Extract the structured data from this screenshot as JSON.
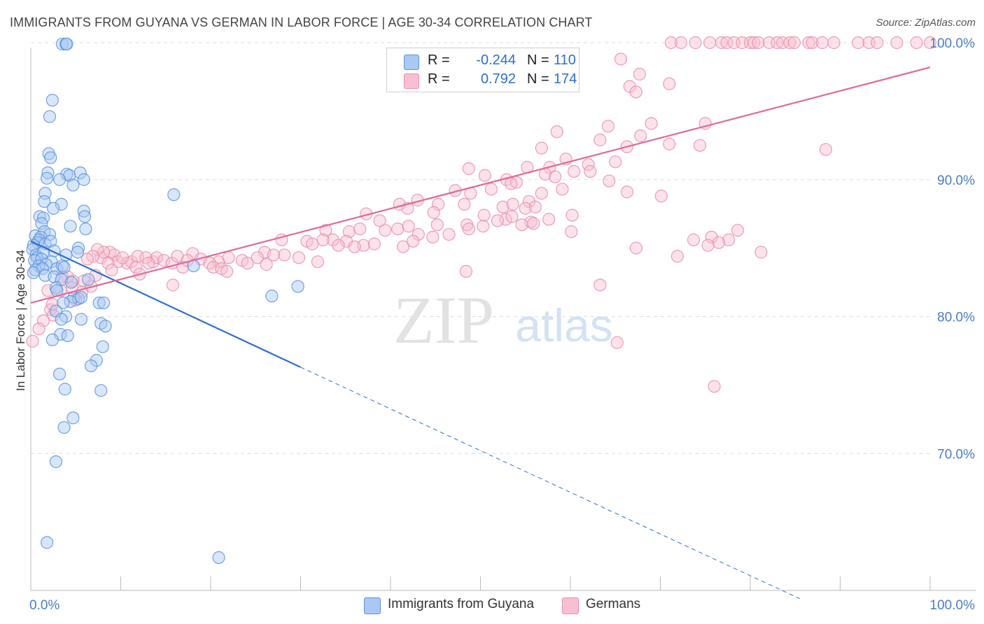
{
  "header": {
    "title": "IMMIGRANTS FROM GUYANA VS GERMAN IN LABOR FORCE | AGE 30-34 CORRELATION CHART",
    "source": "Source: ZipAtlas.com"
  },
  "watermark": {
    "zip": "ZIP",
    "atlas": "atlas"
  },
  "legend": {
    "rows": [
      {
        "r_label": "R =",
        "r_value": "-0.244",
        "n_label": "N =",
        "n_value": "110"
      },
      {
        "r_label": "R =",
        "r_value": "0.792",
        "n_label": "N =",
        "n_value": "174"
      }
    ]
  },
  "colors": {
    "guyana_fill": "#a9c8f3",
    "guyana_stroke": "#5b93dc",
    "guyana_line": "#2d6fcc",
    "german_fill": "#f8bfd0",
    "german_stroke": "#e88ea9",
    "german_line": "#e0699a",
    "tick_label": "#4a7cc9",
    "grid": "#dedede"
  },
  "chart_data": {
    "type": "scatter",
    "title": "IMMIGRANTS FROM GUYANA VS GERMAN IN LABOR FORCE | AGE 30-34 CORRELATION CHART",
    "xlabel": "",
    "ylabel": "In Labor Force | Age 30-34",
    "xlim": [
      0,
      100
    ],
    "ylim": [
      60,
      100
    ],
    "x_tick_labels": [
      "0.0%",
      "100.0%"
    ],
    "y_ticks": [
      70,
      80,
      90,
      100
    ],
    "y_tick_labels": [
      "70.0%",
      "80.0%",
      "90.0%",
      "100.0%"
    ],
    "grid": true,
    "legend_position": "bottom-center",
    "series": [
      {
        "name": "Immigrants from Guyana",
        "r": -0.244,
        "n": 110,
        "trend": {
          "x": [
            0,
            30
          ],
          "y": [
            85.5,
            76.3
          ],
          "dashed_extension": {
            "x": [
              30,
              85.5
            ],
            "y": [
              76.3,
              59.4
            ]
          }
        },
        "points": [
          [
            3.5,
            99.9
          ],
          [
            3.9,
            99.9
          ],
          [
            4.0,
            99.9
          ],
          [
            2.4,
            95.8
          ],
          [
            2.1,
            94.6
          ],
          [
            2.0,
            91.9
          ],
          [
            2.2,
            91.6
          ],
          [
            1.9,
            90.5
          ],
          [
            4.0,
            90.4
          ],
          [
            4.3,
            90.3
          ],
          [
            5.5,
            90.5
          ],
          [
            1.8,
            90.1
          ],
          [
            3.2,
            90.0
          ],
          [
            5.9,
            90.0
          ],
          [
            4.7,
            89.6
          ],
          [
            1.6,
            89.0
          ],
          [
            15.9,
            88.9
          ],
          [
            1.5,
            88.4
          ],
          [
            3.4,
            88.2
          ],
          [
            5.9,
            87.7
          ],
          [
            2.5,
            87.9
          ],
          [
            1.0,
            87.3
          ],
          [
            1.4,
            87.2
          ],
          [
            6.0,
            87.3
          ],
          [
            4.4,
            86.6
          ],
          [
            1.2,
            86.8
          ],
          [
            6.1,
            86.4
          ],
          [
            1.5,
            86.2
          ],
          [
            2.1,
            86.0
          ],
          [
            0.5,
            85.9
          ],
          [
            1.1,
            85.8
          ],
          [
            0.9,
            85.6
          ],
          [
            0.8,
            85.4
          ],
          [
            1.6,
            85.3
          ],
          [
            2.2,
            85.5
          ],
          [
            0.3,
            85.2
          ],
          [
            5.3,
            85.0
          ],
          [
            0.2,
            84.9
          ],
          [
            2.6,
            84.8
          ],
          [
            0.6,
            84.5
          ],
          [
            1.4,
            84.7
          ],
          [
            0.7,
            84.3
          ],
          [
            3.9,
            84.5
          ],
          [
            5.2,
            84.7
          ],
          [
            0.4,
            84.1
          ],
          [
            1.2,
            84.2
          ],
          [
            2.3,
            84.0
          ],
          [
            1.7,
            83.8
          ],
          [
            0.9,
            83.7
          ],
          [
            2.9,
            83.5
          ],
          [
            0.5,
            83.4
          ],
          [
            1.3,
            83.5
          ],
          [
            3.5,
            83.7
          ],
          [
            3.7,
            83.6
          ],
          [
            18.1,
            83.7
          ],
          [
            0.3,
            83.2
          ],
          [
            1.6,
            83.0
          ],
          [
            2.6,
            82.9
          ],
          [
            3.4,
            82.7
          ],
          [
            6.4,
            82.7
          ],
          [
            4.5,
            82.5
          ],
          [
            29.7,
            82.2
          ],
          [
            2.8,
            82.1
          ],
          [
            2.9,
            81.9
          ],
          [
            26.8,
            81.5
          ],
          [
            4.8,
            81.4
          ],
          [
            5.3,
            81.3
          ],
          [
            5.6,
            81.4
          ],
          [
            4.4,
            81.1
          ],
          [
            3.6,
            81.0
          ],
          [
            7.6,
            81.0
          ],
          [
            8.1,
            81.0
          ],
          [
            2.8,
            80.4
          ],
          [
            3.9,
            80.0
          ],
          [
            3.4,
            79.8
          ],
          [
            5.6,
            79.8
          ],
          [
            7.8,
            79.5
          ],
          [
            8.3,
            79.3
          ],
          [
            3.3,
            78.7
          ],
          [
            4.1,
            78.6
          ],
          [
            2.4,
            78.3
          ],
          [
            8.0,
            77.8
          ],
          [
            7.3,
            76.8
          ],
          [
            6.7,
            76.4
          ],
          [
            3.2,
            75.8
          ],
          [
            3.8,
            74.7
          ],
          [
            7.8,
            74.6
          ],
          [
            4.7,
            72.6
          ],
          [
            3.7,
            71.9
          ],
          [
            2.8,
            69.4
          ],
          [
            1.8,
            63.5
          ],
          [
            20.9,
            62.4
          ]
        ]
      },
      {
        "name": "Germans",
        "r": 0.792,
        "n": 174,
        "trend": {
          "x": [
            0,
            100
          ],
          "y": [
            81.0,
            98.2
          ]
        },
        "points": [
          [
            71.2,
            100
          ],
          [
            72.3,
            100
          ],
          [
            73.9,
            100
          ],
          [
            75.5,
            100
          ],
          [
            76.8,
            100
          ],
          [
            77.4,
            100
          ],
          [
            78.2,
            100
          ],
          [
            79.1,
            100
          ],
          [
            80.0,
            100
          ],
          [
            80.4,
            100
          ],
          [
            80.9,
            100
          ],
          [
            82.1,
            100
          ],
          [
            83.0,
            100
          ],
          [
            83.6,
            100
          ],
          [
            84.4,
            100
          ],
          [
            84.9,
            100
          ],
          [
            86.5,
            100
          ],
          [
            86.9,
            100
          ],
          [
            88.0,
            100
          ],
          [
            89.3,
            100
          ],
          [
            92.0,
            100
          ],
          [
            93.2,
            100
          ],
          [
            94.1,
            100
          ],
          [
            96.3,
            100
          ],
          [
            98.5,
            100
          ],
          [
            100.0,
            100
          ],
          [
            65.6,
            98.8
          ],
          [
            67.7,
            97.7
          ],
          [
            71.0,
            97.0
          ],
          [
            66.6,
            96.8
          ],
          [
            67.3,
            96.4
          ],
          [
            69.0,
            94.1
          ],
          [
            75.0,
            94.1
          ],
          [
            64.2,
            93.9
          ],
          [
            58.5,
            93.5
          ],
          [
            67.8,
            93.2
          ],
          [
            63.3,
            92.9
          ],
          [
            71.0,
            92.6
          ],
          [
            74.4,
            92.5
          ],
          [
            66.3,
            92.4
          ],
          [
            56.8,
            92.3
          ],
          [
            88.4,
            92.2
          ],
          [
            59.5,
            91.5
          ],
          [
            62.0,
            91.1
          ],
          [
            65.0,
            91.3
          ],
          [
            48.7,
            90.8
          ],
          [
            55.2,
            90.9
          ],
          [
            57.7,
            90.9
          ],
          [
            60.4,
            90.6
          ],
          [
            50.5,
            90.3
          ],
          [
            62.2,
            90.6
          ],
          [
            52.9,
            90.0
          ],
          [
            57.2,
            90.4
          ],
          [
            58.3,
            90.2
          ],
          [
            64.3,
            89.9
          ],
          [
            54.0,
            89.8
          ],
          [
            47.2,
            89.2
          ],
          [
            48.9,
            89.0
          ],
          [
            51.2,
            89.3
          ],
          [
            53.4,
            89.7
          ],
          [
            59.1,
            89.3
          ],
          [
            56.8,
            89.0
          ],
          [
            66.3,
            89.1
          ],
          [
            43.0,
            88.5
          ],
          [
            45.3,
            88.2
          ],
          [
            48.2,
            88.2
          ],
          [
            52.5,
            88.0
          ],
          [
            53.6,
            88.2
          ],
          [
            55.4,
            88.4
          ],
          [
            55.0,
            87.9
          ],
          [
            56.1,
            88.0
          ],
          [
            60.2,
            87.4
          ],
          [
            70.1,
            88.8
          ],
          [
            37.3,
            87.5
          ],
          [
            41.0,
            88.2
          ],
          [
            41.9,
            87.9
          ],
          [
            44.8,
            87.6
          ],
          [
            50.4,
            87.4
          ],
          [
            52.8,
            87.1
          ],
          [
            53.5,
            87.3
          ],
          [
            55.6,
            86.9
          ],
          [
            45.2,
            86.7
          ],
          [
            38.8,
            87.0
          ],
          [
            48.5,
            86.7
          ],
          [
            50.3,
            86.6
          ],
          [
            51.9,
            87.0
          ],
          [
            54.6,
            86.7
          ],
          [
            57.6,
            87.1
          ],
          [
            55.9,
            86.8
          ],
          [
            60.1,
            86.2
          ],
          [
            32.8,
            86.3
          ],
          [
            35.4,
            86.2
          ],
          [
            36.6,
            86.4
          ],
          [
            39.4,
            86.3
          ],
          [
            40.8,
            86.4
          ],
          [
            42.0,
            86.6
          ],
          [
            43.1,
            86.0
          ],
          [
            44.7,
            85.8
          ],
          [
            46.5,
            86.0
          ],
          [
            48.7,
            86.4
          ],
          [
            33.6,
            85.6
          ],
          [
            35.1,
            85.5
          ],
          [
            37.0,
            85.2
          ],
          [
            38.2,
            85.3
          ],
          [
            41.4,
            85.1
          ],
          [
            42.5,
            85.5
          ],
          [
            78.6,
            86.3
          ],
          [
            77.6,
            85.6
          ],
          [
            75.7,
            85.8
          ],
          [
            73.7,
            85.6
          ],
          [
            76.5,
            85.4
          ],
          [
            75.3,
            85.2
          ],
          [
            67.3,
            85.0
          ],
          [
            71.9,
            84.4
          ],
          [
            27.9,
            85.6
          ],
          [
            30.7,
            85.5
          ],
          [
            31.3,
            85.3
          ],
          [
            32.5,
            85.6
          ],
          [
            34.2,
            85.2
          ],
          [
            36.0,
            85.1
          ],
          [
            26.0,
            84.7
          ],
          [
            28.2,
            84.5
          ],
          [
            29.8,
            84.3
          ],
          [
            31.9,
            84.0
          ],
          [
            20.9,
            84.0
          ],
          [
            22.0,
            84.3
          ],
          [
            23.5,
            84.1
          ],
          [
            24.1,
            83.9
          ],
          [
            25.2,
            84.3
          ],
          [
            26.2,
            83.8
          ],
          [
            27.0,
            84.5
          ],
          [
            18.0,
            84.6
          ],
          [
            18.9,
            84.2
          ],
          [
            19.9,
            83.9
          ],
          [
            20.3,
            83.6
          ],
          [
            21.2,
            83.5
          ],
          [
            13.6,
            84.0
          ],
          [
            14.0,
            84.3
          ],
          [
            14.8,
            84.1
          ],
          [
            15.7,
            83.9
          ],
          [
            16.3,
            84.4
          ],
          [
            16.9,
            83.6
          ],
          [
            17.4,
            84.1
          ],
          [
            10.7,
            83.9
          ],
          [
            11.2,
            84.0
          ],
          [
            11.9,
            84.4
          ],
          [
            12.8,
            84.3
          ],
          [
            13.1,
            83.9
          ],
          [
            8.8,
            84.7
          ],
          [
            9.3,
            84.5
          ],
          [
            9.7,
            84.0
          ],
          [
            10.2,
            84.3
          ],
          [
            11.7,
            83.6
          ],
          [
            12.1,
            83.1
          ],
          [
            15.8,
            82.3
          ],
          [
            7.8,
            84.3
          ],
          [
            8.1,
            84.7
          ],
          [
            8.6,
            83.9
          ],
          [
            9.0,
            83.4
          ],
          [
            7.4,
            84.9
          ],
          [
            6.9,
            84.4
          ],
          [
            6.3,
            84.2
          ],
          [
            5.9,
            82.6
          ],
          [
            6.7,
            82.2
          ],
          [
            7.2,
            83.0
          ],
          [
            5.7,
            81.8
          ],
          [
            4.7,
            82.6
          ],
          [
            4.1,
            82.9
          ],
          [
            3.5,
            82.9
          ],
          [
            4.6,
            82.1
          ],
          [
            3.3,
            81.9
          ],
          [
            5.0,
            81.2
          ],
          [
            1.9,
            81.9
          ],
          [
            2.2,
            80.5
          ],
          [
            2.5,
            80.1
          ],
          [
            1.4,
            79.7
          ],
          [
            0.9,
            79.1
          ],
          [
            0.2,
            78.2
          ],
          [
            2.4,
            80.9
          ],
          [
            81.2,
            84.7
          ],
          [
            48.4,
            83.3
          ],
          [
            63.3,
            82.3
          ],
          [
            65.2,
            78.1
          ],
          [
            76.0,
            74.9
          ],
          [
            21.8,
            83.3
          ]
        ]
      }
    ]
  }
}
